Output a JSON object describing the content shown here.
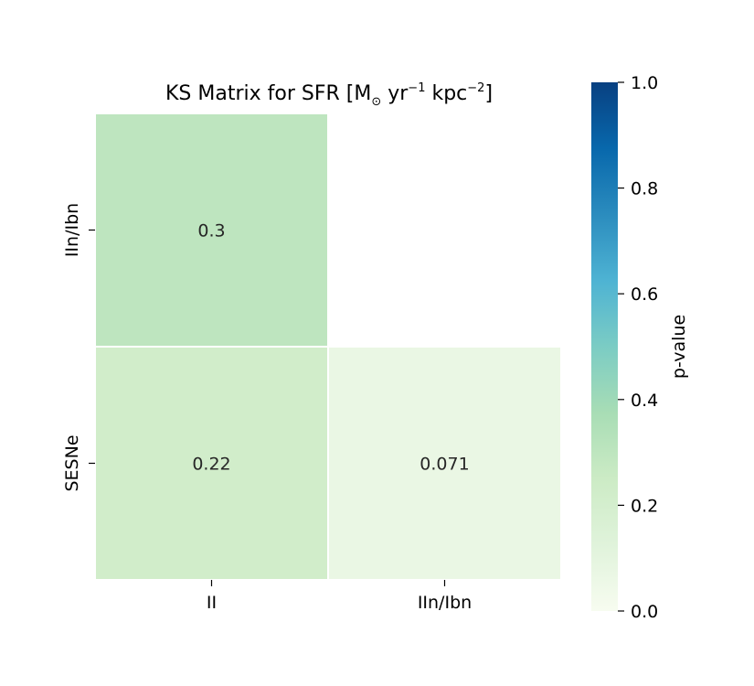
{
  "chart_data": {
    "type": "heatmap",
    "title": {
      "text": "KS Matrix for SFR [M",
      "sub1": "⊙",
      "mid": " yr",
      "sup1": "−1",
      "mid2": " kpc",
      "sup2": "−2",
      "end": "]"
    },
    "x_categories": [
      "II",
      "IIn/Ibn"
    ],
    "y_categories": [
      "IIn/Ibn",
      "SESNe"
    ],
    "cells": [
      {
        "row": 0,
        "col": 0,
        "value": 0.3,
        "label": "0.3"
      },
      {
        "row": 1,
        "col": 0,
        "value": 0.22,
        "label": "0.22"
      },
      {
        "row": 1,
        "col": 1,
        "value": 0.071,
        "label": "0.071"
      }
    ],
    "colormap": "GnBu",
    "colorbar": {
      "label": "p-value",
      "range": [
        0,
        1
      ],
      "ticks": [
        "0.0",
        "0.2",
        "0.4",
        "0.6",
        "0.8",
        "1.0"
      ]
    },
    "masked_cells": "upper triangle"
  }
}
